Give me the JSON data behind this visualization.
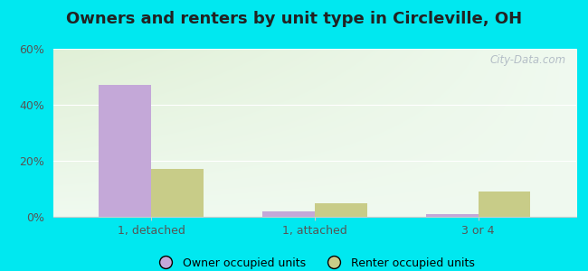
{
  "title": "Owners and renters by unit type in Circleville, OH",
  "categories": [
    "1, detached",
    "1, attached",
    "3 or 4"
  ],
  "owner_values": [
    47,
    2,
    1
  ],
  "renter_values": [
    17,
    5,
    9
  ],
  "owner_color": "#c4a8d8",
  "renter_color": "#c8cc88",
  "ylim": [
    0,
    60
  ],
  "yticks": [
    0,
    20,
    40,
    60
  ],
  "ytick_labels": [
    "0%",
    "20%",
    "40%",
    "60%"
  ],
  "outer_background": "#00e8f0",
  "bar_width": 0.32,
  "legend_owner": "Owner occupied units",
  "legend_renter": "Renter occupied units",
  "watermark": "City-Data.com",
  "title_fontsize": 13,
  "axis_fontsize": 9,
  "legend_fontsize": 9
}
